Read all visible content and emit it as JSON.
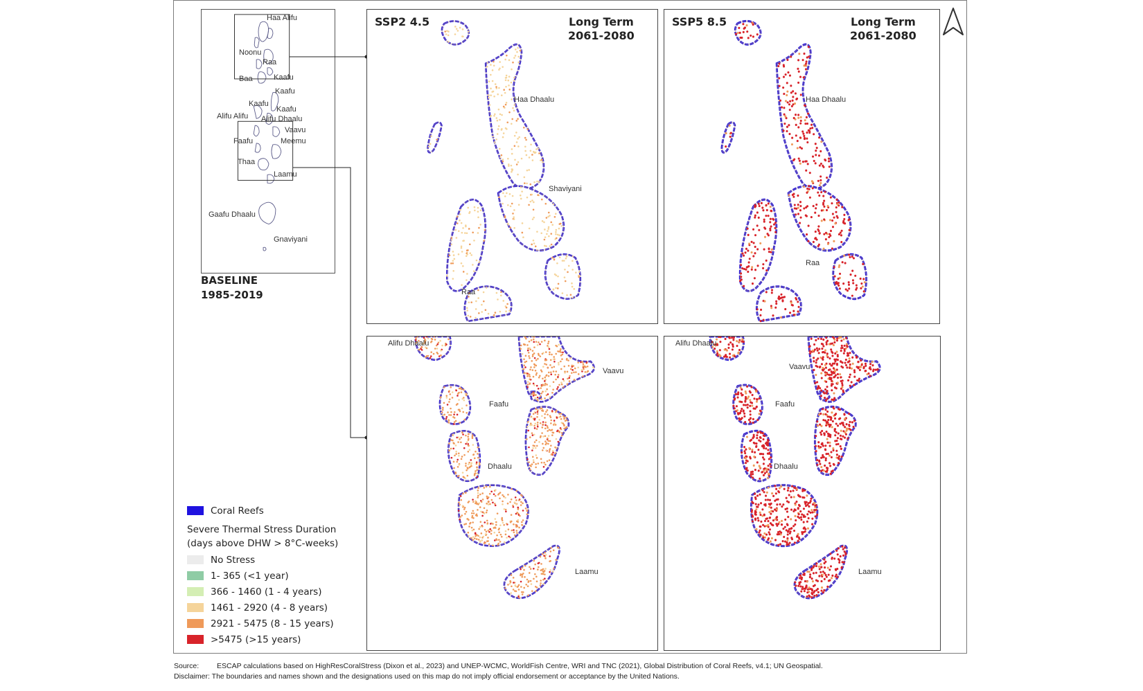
{
  "baseline": {
    "caption_line1": "BASELINE",
    "caption_line2": "1985-2019",
    "atoll_labels": [
      "Haa Alifu",
      "Noonu",
      "Raa",
      "Baa",
      "Kaafu",
      "Kaafu",
      "Kaafu",
      "Kaafu",
      "Alifu Alifu",
      "Alifu Dhaalu",
      "Vaavu",
      "Faafu",
      "Meemu",
      "Thaa",
      "Laamu",
      "Gaafu Dhaalu",
      "Gnaviyani"
    ]
  },
  "panels": {
    "ssp245_north": {
      "scenario": "SSP2 4.5",
      "term_line1": "Long Term",
      "term_line2": "2061-2080",
      "labels": [
        "Haa Dhaalu",
        "Shaviyani",
        "Raa"
      ]
    },
    "ssp585_north": {
      "scenario": "SSP5 8.5",
      "term_line1": "Long Term",
      "term_line2": "2061-2080",
      "labels": [
        "Haa Dhaalu",
        "Raa"
      ]
    },
    "ssp245_south": {
      "labels": [
        "Alifu Dhaalu",
        "Vaavu",
        "Faafu",
        "Dhaalu",
        "Laamu"
      ]
    },
    "ssp585_south": {
      "labels": [
        "Alifu Dhaalu",
        "Vaavu",
        "Faafu",
        "Dhaalu",
        "Laamu"
      ]
    }
  },
  "legend": {
    "coral_reefs": "Coral Reefs",
    "title_line1": "Severe Thermal Stress Duration",
    "title_line2": "(days above DHW > 8°C-weeks)",
    "classes": [
      {
        "label": "No Stress",
        "color": "#ececec"
      },
      {
        "label": "1- 365 (<1 year)",
        "color": "#8fcca5"
      },
      {
        "label": "366 - 1460 (1 - 4 years)",
        "color": "#d4eeb4"
      },
      {
        "label": "1461 - 2920 (4 - 8 years)",
        "color": "#f5d49a"
      },
      {
        "label": "2921 - 5475 (8 - 15 years)",
        "color": "#ef9a5a"
      },
      {
        "label": ">5475 (>15 years)",
        "color": "#d8232a"
      }
    ],
    "coral_color": "#1f12e0"
  },
  "source": {
    "source_key": "Source:",
    "source_text": "ESCAP calculations based on HighResCoralStress (Dixon et al., 2023) and UNEP-WCMC, WorldFish Centre, WRI and TNC (2021), Global Distribution of Coral Reefs, v4.1; UN Geospatial.",
    "disclaimer_key": "Disclaimer:",
    "disclaimer_text": "The boundaries and names shown and the designations used on this map do not imply official endorsement or acceptance by the United Nations."
  },
  "icons": {
    "north": "north-arrow-icon"
  }
}
